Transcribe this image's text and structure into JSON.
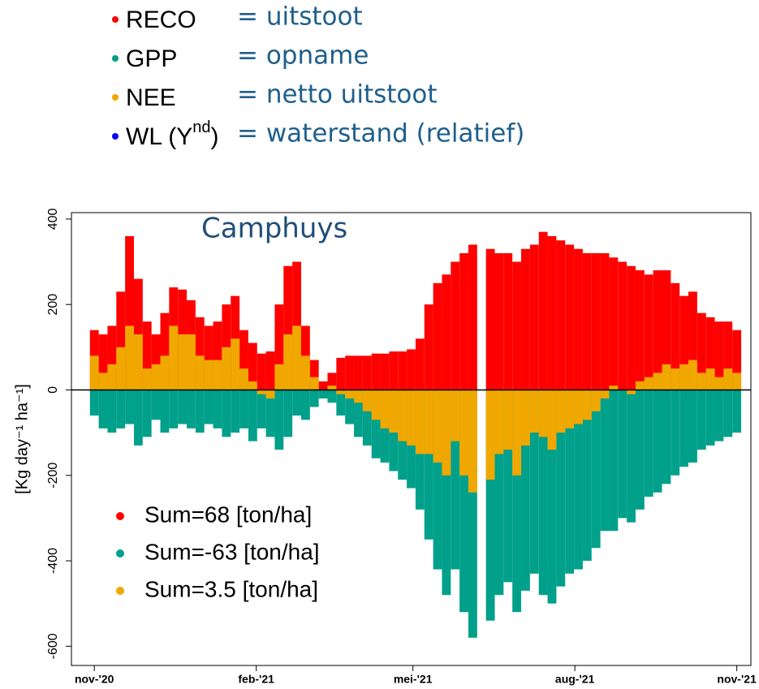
{
  "key": [
    {
      "label": "RECO",
      "meaning": "= uitstoot",
      "color": "#ff0000"
    },
    {
      "label": "GPP",
      "meaning": "= opname",
      "color": "#00a08a"
    },
    {
      "label": "NEE",
      "meaning": "= netto uitstoot",
      "color": "#f0a800"
    },
    {
      "label": "WL (Y",
      "superscript": "nd",
      "label_end": ")",
      "meaning": "= waterstand (relatief)",
      "color": "#0000ff"
    }
  ],
  "chart_data": {
    "type": "bar",
    "title": "Camphuys",
    "y_label": "[Kg day⁻¹ ha⁻¹]",
    "x": [
      0,
      5,
      10,
      15,
      20,
      25,
      30,
      35,
      40,
      45,
      50,
      55,
      60,
      65,
      70,
      75,
      80,
      85,
      90,
      95,
      100,
      105,
      110,
      115,
      120,
      125,
      130,
      135,
      140,
      145,
      150,
      155,
      160,
      165,
      170,
      175,
      180,
      185,
      190,
      195,
      200,
      205,
      210,
      215,
      220,
      225,
      230,
      235,
      240,
      245,
      250,
      255,
      260,
      265,
      270,
      275,
      280,
      285,
      290,
      295,
      300,
      305,
      310,
      315,
      320,
      325,
      330,
      335,
      340,
      345,
      350,
      355,
      360,
      365
    ],
    "xlim": [
      -13,
      373
    ],
    "xticks": [
      {
        "value": 0,
        "label": "nov-'20"
      },
      {
        "value": 92,
        "label": "feb-'21"
      },
      {
        "value": 181,
        "label": "mei-'21"
      },
      {
        "value": 273,
        "label": "aug-'21"
      },
      {
        "value": 365,
        "label": "nov-'21"
      }
    ],
    "ylim": [
      -645,
      415
    ],
    "yticks": [
      -600,
      -400,
      -200,
      0,
      200,
      400
    ],
    "legend": "lower left",
    "series": [
      {
        "name": "Sum=68 [ton/ha]",
        "color": "#ff0000",
        "values": [
          140,
          130,
          150,
          230,
          360,
          260,
          160,
          130,
          180,
          240,
          235,
          210,
          170,
          150,
          160,
          200,
          220,
          140,
          110,
          85,
          90,
          200,
          290,
          300,
          150,
          70,
          20,
          40,
          75,
          80,
          80,
          80,
          85,
          85,
          90,
          90,
          95,
          120,
          200,
          250,
          270,
          300,
          320,
          340,
          null,
          330,
          320,
          320,
          300,
          330,
          340,
          370,
          360,
          350,
          340,
          330,
          320,
          320,
          320,
          310,
          300,
          290,
          280,
          270,
          280,
          280,
          250,
          220,
          230,
          180,
          170,
          160,
          160,
          140
        ]
      },
      {
        "name": "Sum=-63 [ton/ha]",
        "color": "#00a08a",
        "values": [
          -60,
          -90,
          -100,
          -90,
          -80,
          -130,
          -110,
          -70,
          -100,
          -90,
          -80,
          -90,
          -100,
          -80,
          -90,
          -110,
          -100,
          -90,
          -120,
          -90,
          -110,
          -140,
          -110,
          -60,
          -70,
          -40,
          -20,
          -30,
          -60,
          -80,
          -110,
          -130,
          -160,
          -170,
          -190,
          -210,
          -230,
          -280,
          -350,
          -420,
          -480,
          -420,
          -520,
          -580,
          null,
          -540,
          -480,
          -450,
          -520,
          -470,
          -430,
          -480,
          -500,
          -460,
          -430,
          -420,
          -400,
          -370,
          -330,
          -330,
          -300,
          -310,
          -280,
          -250,
          -240,
          -220,
          -200,
          -180,
          -170,
          -140,
          -130,
          -120,
          -110,
          -100
        ]
      },
      {
        "name": "Sum=3.5 [ton/ha]",
        "color": "#f0a800",
        "values": [
          80,
          40,
          60,
          100,
          150,
          130,
          50,
          60,
          80,
          150,
          130,
          130,
          80,
          70,
          70,
          100,
          120,
          50,
          20,
          -10,
          -20,
          60,
          130,
          150,
          80,
          30,
          0,
          10,
          -10,
          -20,
          -30,
          -50,
          -70,
          -90,
          -100,
          -120,
          -130,
          -150,
          -150,
          -170,
          -200,
          -120,
          -200,
          -240,
          null,
          -210,
          -150,
          -140,
          -200,
          -130,
          -100,
          -110,
          -140,
          -100,
          -90,
          -80,
          -70,
          -50,
          -20,
          10,
          0,
          -10,
          20,
          30,
          40,
          60,
          50,
          60,
          70,
          40,
          50,
          30,
          50,
          40
        ]
      }
    ]
  }
}
